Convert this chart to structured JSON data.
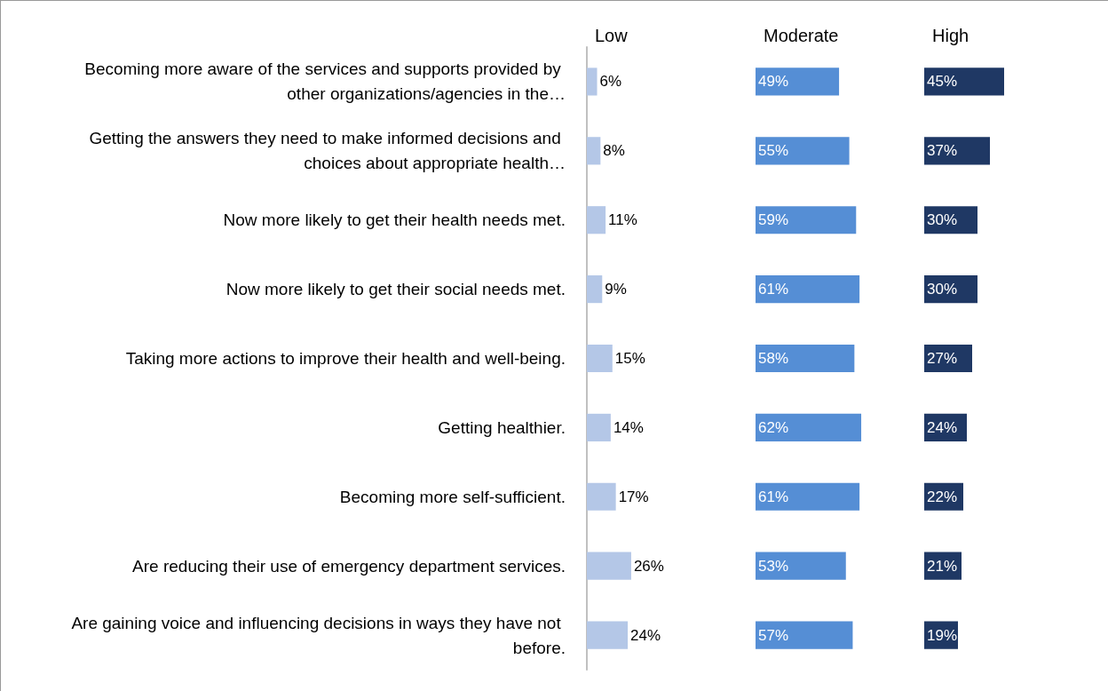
{
  "chart_data": [
    {
      "type": "bar",
      "orientation": "horizontal",
      "title": "Low",
      "categories": [
        "Becoming more aware of the services and supports provided by other organizations/agencies in the…",
        "Getting the answers they need to make informed decisions and choices about appropriate health…",
        "Now more likely to get their health needs met.",
        "Now more likely to get their social needs met.",
        "Taking more actions to improve their health and well-being.",
        "Getting healthier.",
        "Becoming more self-sufficient.",
        "Are reducing their use of emergency department services.",
        "Are gaining voice and influencing decisions in ways they have not before."
      ],
      "color": "#b4c7e7",
      "values": [
        6,
        8,
        11,
        9,
        15,
        14,
        17,
        26,
        24
      ],
      "value_labels": [
        "6%",
        "8%",
        "11%",
        "9%",
        "15%",
        "14%",
        "17%",
        "26%",
        "24%"
      ],
      "tick_labels": "y"
    },
    {
      "type": "bar",
      "orientation": "horizontal",
      "title": "Moderate",
      "color": "#558ed5",
      "values": [
        49,
        55,
        59,
        61,
        58,
        62,
        61,
        53,
        57
      ],
      "value_labels": [
        "49%",
        "55%",
        "59%",
        "61%",
        "58%",
        "62%",
        "61%",
        "53%",
        "57%"
      ],
      "tick_labels": false
    },
    {
      "type": "bar",
      "orientation": "horizontal",
      "title": "High",
      "color": "#1f3864",
      "values": [
        45,
        37,
        30,
        30,
        27,
        24,
        22,
        21,
        19
      ],
      "value_labels": [
        "45%",
        "37%",
        "30%",
        "30%",
        "27%",
        "24%",
        "22%",
        "21%",
        "19%"
      ],
      "tick_labels": false
    }
  ]
}
